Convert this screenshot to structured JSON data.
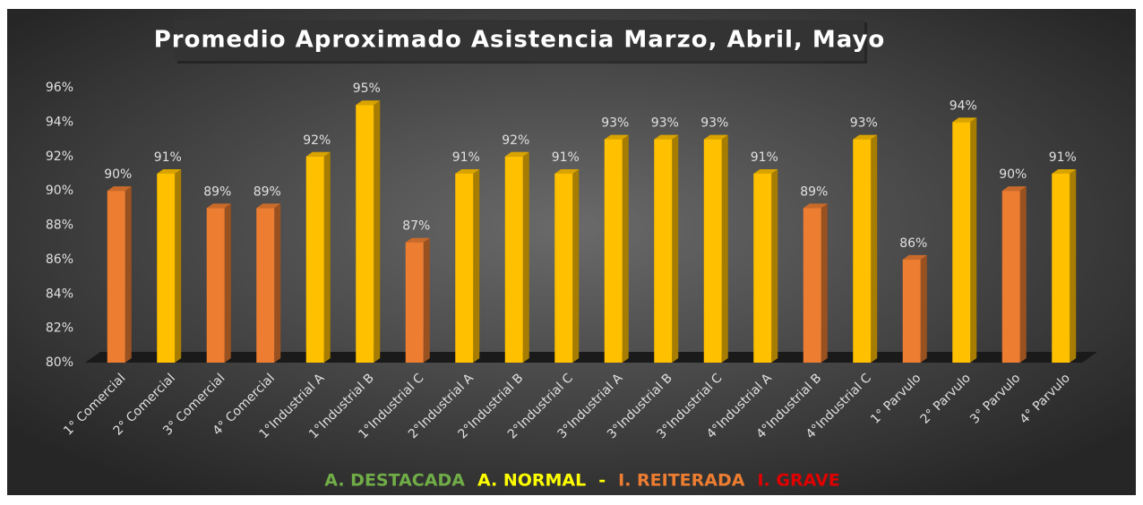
{
  "chart_data": {
    "type": "bar3d",
    "title": "Promedio Aproximado Asistencia Marzo, Abril, Mayo",
    "categories": [
      "1° Comercial",
      "2° Comercial",
      "3° Comercial",
      "4° Comercial",
      "1°Industrial A",
      "1°Industrial B",
      "1°Industrial C",
      "2°Industrial A",
      "2°Industrial B",
      "2°Industrial C",
      "3°Industrial A",
      "3°Industrial B",
      "3°Industrial C",
      "4°Industrial A",
      "4°Industrial B",
      "4°Industrial C",
      "1° Parvulo",
      "2° Parvulo",
      "3° Parvulo",
      "4° Parvulo"
    ],
    "values": [
      90,
      91,
      89,
      89,
      92,
      95,
      87,
      91,
      92,
      91,
      93,
      93,
      93,
      91,
      89,
      93,
      86,
      94,
      90,
      91
    ],
    "value_labels": [
      "90%",
      "91%",
      "89%",
      "89%",
      "92%",
      "95%",
      "87%",
      "91%",
      "92%",
      "91%",
      "93%",
      "93%",
      "93%",
      "91%",
      "89%",
      "93%",
      "86%",
      "94%",
      "90%",
      "91%"
    ],
    "colors": [
      "#ed7d31",
      "#ffc000",
      "#ed7d31",
      "#ed7d31",
      "#ffc000",
      "#ffc000",
      "#ed7d31",
      "#ffc000",
      "#ffc000",
      "#ffc000",
      "#ffc000",
      "#ffc000",
      "#ffc000",
      "#ffc000",
      "#ed7d31",
      "#ffc000",
      "#ed7d31",
      "#ffc000",
      "#ed7d31",
      "#ffc000"
    ],
    "ylim": [
      80,
      96
    ],
    "yticks": [
      {
        "value": 80,
        "label": "80%"
      },
      {
        "value": 82,
        "label": "82%"
      },
      {
        "value": 84,
        "label": "84%"
      },
      {
        "value": 86,
        "label": "86%"
      },
      {
        "value": 88,
        "label": "88%"
      },
      {
        "value": 90,
        "label": "90%"
      },
      {
        "value": 92,
        "label": "92%"
      },
      {
        "value": 94,
        "label": "94%"
      },
      {
        "value": 96,
        "label": "96%"
      }
    ],
    "grid": false,
    "legend": [
      {
        "label": "A. DESTACADA",
        "color": "#70ad47"
      },
      {
        "label": "A. NORMAL",
        "color": "#ffff00"
      },
      {
        "label": "-",
        "color": "#ffff00"
      },
      {
        "label": "I. REITERADA",
        "color": "#ed7d31"
      },
      {
        "label": "I. GRAVE",
        "color": "#e00000"
      }
    ]
  }
}
